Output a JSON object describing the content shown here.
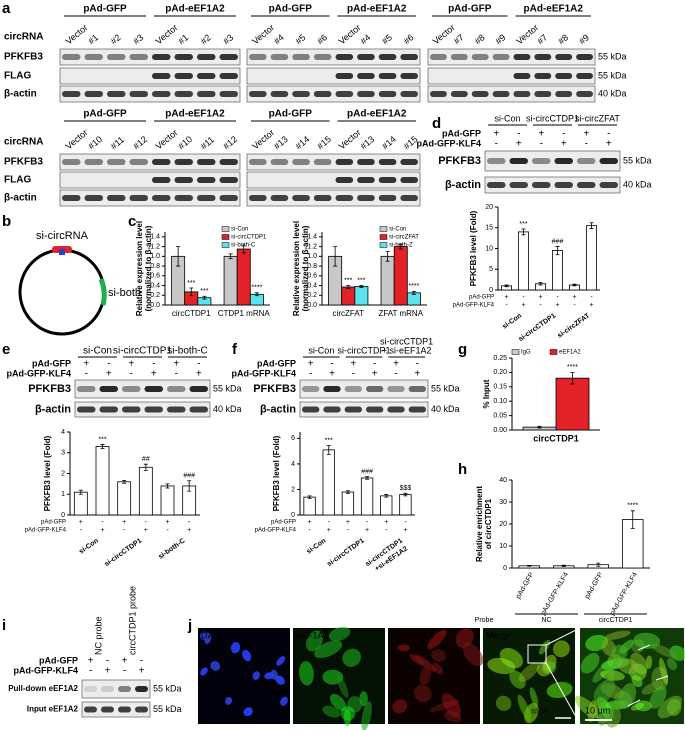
{
  "figure": {
    "panel_labels": {
      "a": "a",
      "b": "b",
      "c": "c",
      "d": "d",
      "e": "e",
      "f": "f",
      "g": "g",
      "h": "h",
      "i": "i",
      "j": "j"
    },
    "a_blots": [
      {
        "groups": [
          "pAd-GFP",
          "pAd-eEF1A2"
        ],
        "lane_header": "circRNA",
        "lanes": [
          "Vector",
          "#1",
          "#2",
          "#3",
          "Vector",
          "#1",
          "#2",
          "#3"
        ],
        "rows": [
          "PFKFB3",
          "FLAG",
          "β-actin"
        ]
      },
      {
        "groups": [
          "pAd-GFP",
          "pAd-eEF1A2"
        ],
        "lanes": [
          "Vector",
          "#4",
          "#5",
          "#6",
          "Vector",
          "#4",
          "#5",
          "#6"
        ]
      },
      {
        "groups": [
          "pAd-GFP",
          "pAd-eEF1A2"
        ],
        "lanes": [
          "Vector",
          "#7",
          "#8",
          "#9",
          "Vector",
          "#7",
          "#8",
          "#9"
        ],
        "markers": [
          "55 kDa",
          "55 kDa",
          "40 kDa"
        ]
      },
      {
        "groups": [
          "pAd-GFP",
          "pAd-eEF1A2"
        ],
        "lane_header": "circRNA",
        "lanes": [
          "Vector",
          "#10",
          "#11",
          "#12",
          "Vector",
          "#10",
          "#11",
          "#12"
        ],
        "rows": [
          "PFKFB3",
          "FLAG",
          "β-actin"
        ]
      },
      {
        "groups": [
          "pAd-GFP",
          "pAd-eEF1A2"
        ],
        "lanes": [
          "Vector",
          "#13",
          "#14",
          "#15",
          "Vector",
          "#13",
          "#14",
          "#15"
        ]
      }
    ],
    "b": {
      "sirna": "si-circRNA",
      "siboth": "si-both"
    },
    "d_blot": {
      "groups": [
        "si-Con",
        "si-circCTDP1",
        "si-circZFAT"
      ],
      "conditions": [
        {
          "name": "pAd-GFP",
          "signs": [
            "+",
            "-",
            "+",
            "-",
            "+",
            "-"
          ]
        },
        {
          "name": "pAd-GFP-KLF4",
          "signs": [
            "-",
            "+",
            "-",
            "+",
            "-",
            "+"
          ]
        }
      ],
      "rows": [
        "PFKFB3",
        "β-actin"
      ],
      "markers": [
        "55 kDa",
        "40 kDa"
      ]
    },
    "e_blot": {
      "groups": [
        "si-Con",
        "si-circCTDP1",
        "si-both-C"
      ],
      "conditions": [
        {
          "name": "pAd-GFP",
          "signs": [
            "+",
            "-",
            "+",
            "-",
            "+",
            "-"
          ]
        },
        {
          "name": "pAd-GFP-KLF4",
          "signs": [
            "-",
            "+",
            "-",
            "+",
            "-",
            "+"
          ]
        }
      ],
      "rows": [
        "PFKFB3",
        "β-actin"
      ],
      "markers": [
        "55 kDa",
        "40 kDa"
      ]
    },
    "f_blot": {
      "groups": [
        "si-Con",
        "si-circCTDP1",
        [
          "si-circCTDP1",
          "+ si-eEF1A2"
        ]
      ],
      "conditions": [
        {
          "name": "pAd-GFP",
          "signs": [
            "+",
            "-",
            "+",
            "-",
            "+",
            "-"
          ]
        },
        {
          "name": "pAd-GFP-KLF4",
          "signs": [
            "-",
            "+",
            "-",
            "+",
            "-",
            "+"
          ]
        }
      ],
      "rows": [
        "PFKFB3",
        "β-actin"
      ],
      "markers": [
        "55 kDa",
        "40 kDa"
      ]
    },
    "i_blot": {
      "groups": [
        "NC probe",
        "circCTDP1 probe"
      ],
      "conditions": [
        {
          "name": "pAd-GFP",
          "signs": [
            "+",
            "-",
            "+",
            "-"
          ]
        },
        {
          "name": "pAd-GFP-KLF4",
          "signs": [
            "-",
            "+",
            "-",
            "+"
          ]
        }
      ],
      "rows": [
        "Pull-down eEF1A2",
        "Input eEF1A2"
      ],
      "markers": [
        "55 kDa",
        "55 kDa"
      ]
    },
    "j": {
      "channels": [
        "DAPI",
        "eEF1A2",
        "circCTDP1",
        "Merge"
      ],
      "scale_bars": [
        "50 μm",
        "10 μm"
      ]
    }
  },
  "chart_data": [
    {
      "type": "bar",
      "y_label": [
        "Relative expression level",
        "(normalized to β-actin)"
      ],
      "categories": [
        "circCTDP1",
        "CTDP1 mRNA"
      ],
      "series": [
        {
          "name": "si-Con",
          "color": "#c8c8c8",
          "values": [
            1.0,
            1.0
          ],
          "errors": [
            0.2,
            0.05
          ]
        },
        {
          "name": "si-circCTDP1",
          "color": "#e32227",
          "values": [
            0.27,
            1.15
          ],
          "errors": [
            0.08,
            0.08
          ],
          "sig": [
            "***",
            null
          ]
        },
        {
          "name": "si-both-C",
          "color": "#5ae4ef",
          "values": [
            0.15,
            0.22
          ],
          "errors": [
            0.03,
            0.03
          ],
          "sig": [
            "***",
            "****"
          ]
        }
      ],
      "ylim": [
        0,
        1.5
      ],
      "yticks": [
        {
          "value": 0,
          "label": "0.0"
        },
        0.2,
        0.4,
        0.6,
        0.8,
        {
          "value": 1,
          "label": "1.0"
        },
        1.2,
        1.4
      ]
    },
    {
      "type": "bar",
      "y_label": [
        "Relative expression level",
        "(normalized to β-actin)"
      ],
      "categories": [
        "circZFAT",
        "ZFAT mRNA"
      ],
      "series": [
        {
          "name": "si-Con",
          "color": "#c8c8c8",
          "values": [
            1.0,
            1.0
          ],
          "errors": [
            0.2,
            0.1
          ]
        },
        {
          "name": "si-circZFAT",
          "color": "#e32227",
          "values": [
            0.37,
            1.2
          ],
          "errors": [
            0.03,
            0.05
          ],
          "sig": [
            "***",
            null
          ]
        },
        {
          "name": "si-both-Z",
          "color": "#5ae4ef",
          "values": [
            0.38,
            0.25
          ],
          "errors": [
            0.02,
            0.03
          ],
          "sig": [
            "***",
            "****"
          ]
        }
      ],
      "ylim": [
        0,
        1.5
      ],
      "yticks": [
        {
          "value": 0,
          "label": "0.0"
        },
        0.2,
        0.4,
        0.6,
        0.8,
        {
          "value": 1,
          "label": "1.0"
        },
        1.2,
        1.4
      ]
    },
    {
      "type": "bar",
      "y_label": "PFKFB3 level (Fold)",
      "series": [
        {
          "color": "#ffffff",
          "values": [
            1.0,
            14.0,
            1.5,
            9.5,
            1.2,
            15.5
          ],
          "errors": [
            0.2,
            0.7,
            0.3,
            1.0,
            0.2,
            0.7
          ],
          "sig": [
            null,
            "***",
            null,
            "###",
            null,
            null
          ]
        }
      ],
      "conditions": [
        {
          "name": "pAd-GFP",
          "signs": [
            "+",
            "-",
            "+",
            "-",
            "+",
            "-"
          ]
        },
        {
          "name": "pAd-GFP-KLF4",
          "signs": [
            "-",
            "+",
            "-",
            "+",
            "-",
            "+"
          ]
        }
      ],
      "groups": [
        "si-Con",
        "si-circCTDP1",
        "si-circZFAT"
      ],
      "ylim": [
        0,
        20
      ],
      "yticks": [
        0,
        5,
        10,
        15,
        20
      ]
    },
    {
      "type": "bar",
      "y_label": "PFKFB3 level (Fold)",
      "series": [
        {
          "color": "#ffffff",
          "values": [
            1.1,
            3.3,
            1.6,
            2.3,
            1.4,
            1.4
          ],
          "errors": [
            0.1,
            0.1,
            0.07,
            0.15,
            0.1,
            0.25
          ],
          "sig": [
            null,
            "***",
            null,
            "##",
            null,
            "###"
          ]
        }
      ],
      "conditions": [
        {
          "name": "pAd-GFP",
          "signs": [
            "+",
            "-",
            "+",
            "-",
            "+",
            "-"
          ]
        },
        {
          "name": "pAd-GFP-KLF4",
          "signs": [
            "-",
            "+",
            "-",
            "+",
            "-",
            "+"
          ]
        }
      ],
      "groups": [
        "si-Con",
        "si-circCTDP1",
        "si-both-C"
      ],
      "ylim": [
        0,
        4
      ],
      "yticks": [
        0,
        1,
        2,
        3,
        4
      ]
    },
    {
      "type": "bar",
      "y_label": "PFKFB3 level (Fold)",
      "series": [
        {
          "color": "#ffffff",
          "values": [
            1.4,
            5.1,
            1.8,
            2.9,
            1.5,
            1.6
          ],
          "errors": [
            0.1,
            0.35,
            0.1,
            0.1,
            0.1,
            0.1
          ],
          "sig": [
            null,
            "***",
            null,
            "###",
            null,
            "$$$"
          ]
        }
      ],
      "conditions": [
        {
          "name": "pAd-GFP",
          "signs": [
            "+",
            "-",
            "+",
            "-",
            "+",
            "-"
          ]
        },
        {
          "name": "pAd-GFP-KLF4",
          "signs": [
            "-",
            "+",
            "-",
            "+",
            "-",
            "+"
          ]
        }
      ],
      "groups": [
        "si-Con",
        "si-circCTDP1",
        [
          "si-circCTDP1",
          "+si-eEF1A2"
        ]
      ],
      "ylim": [
        0,
        6.5
      ],
      "yticks": [
        0,
        2,
        4,
        6
      ]
    },
    {
      "type": "bar",
      "y_label": "% Input",
      "categories": [
        "circCTDP1"
      ],
      "series": [
        {
          "name": "IgG",
          "color": "#c8c8c8",
          "values": [
            0.01
          ],
          "errors": [
            0.003
          ]
        },
        {
          "name": "eEF1A2",
          "color": "#e32227",
          "values": [
            0.18
          ],
          "errors": [
            0.02
          ],
          "sig": [
            "****"
          ]
        }
      ],
      "ylim": [
        0,
        0.25
      ],
      "yticks": [
        {
          "value": 0,
          "label": "0.00"
        },
        0.05,
        {
          "value": 0.1,
          "label": "0.10"
        },
        0.15,
        {
          "value": 0.2,
          "label": "0.20"
        },
        0.25
      ]
    },
    {
      "type": "bar",
      "y_label": [
        "Relative enrichment",
        "of circCTDP1"
      ],
      "categories": [
        "pAd-GFP",
        "pAd-GFP-KLF4",
        "pAd-GFP",
        "pAd-GFP-KLF4"
      ],
      "series": [
        {
          "color": "#ffffff",
          "values": [
            1.0,
            1.0,
            1.5,
            22.0
          ],
          "errors": [
            0.2,
            0.3,
            0.7,
            4.0
          ],
          "sig": [
            null,
            null,
            null,
            "****"
          ]
        }
      ],
      "groups": [
        "NC",
        "circCTDP1"
      ],
      "group_title": "Probe",
      "ylim": [
        0,
        40
      ],
      "yticks": [
        0,
        10,
        20,
        30,
        40
      ]
    }
  ]
}
